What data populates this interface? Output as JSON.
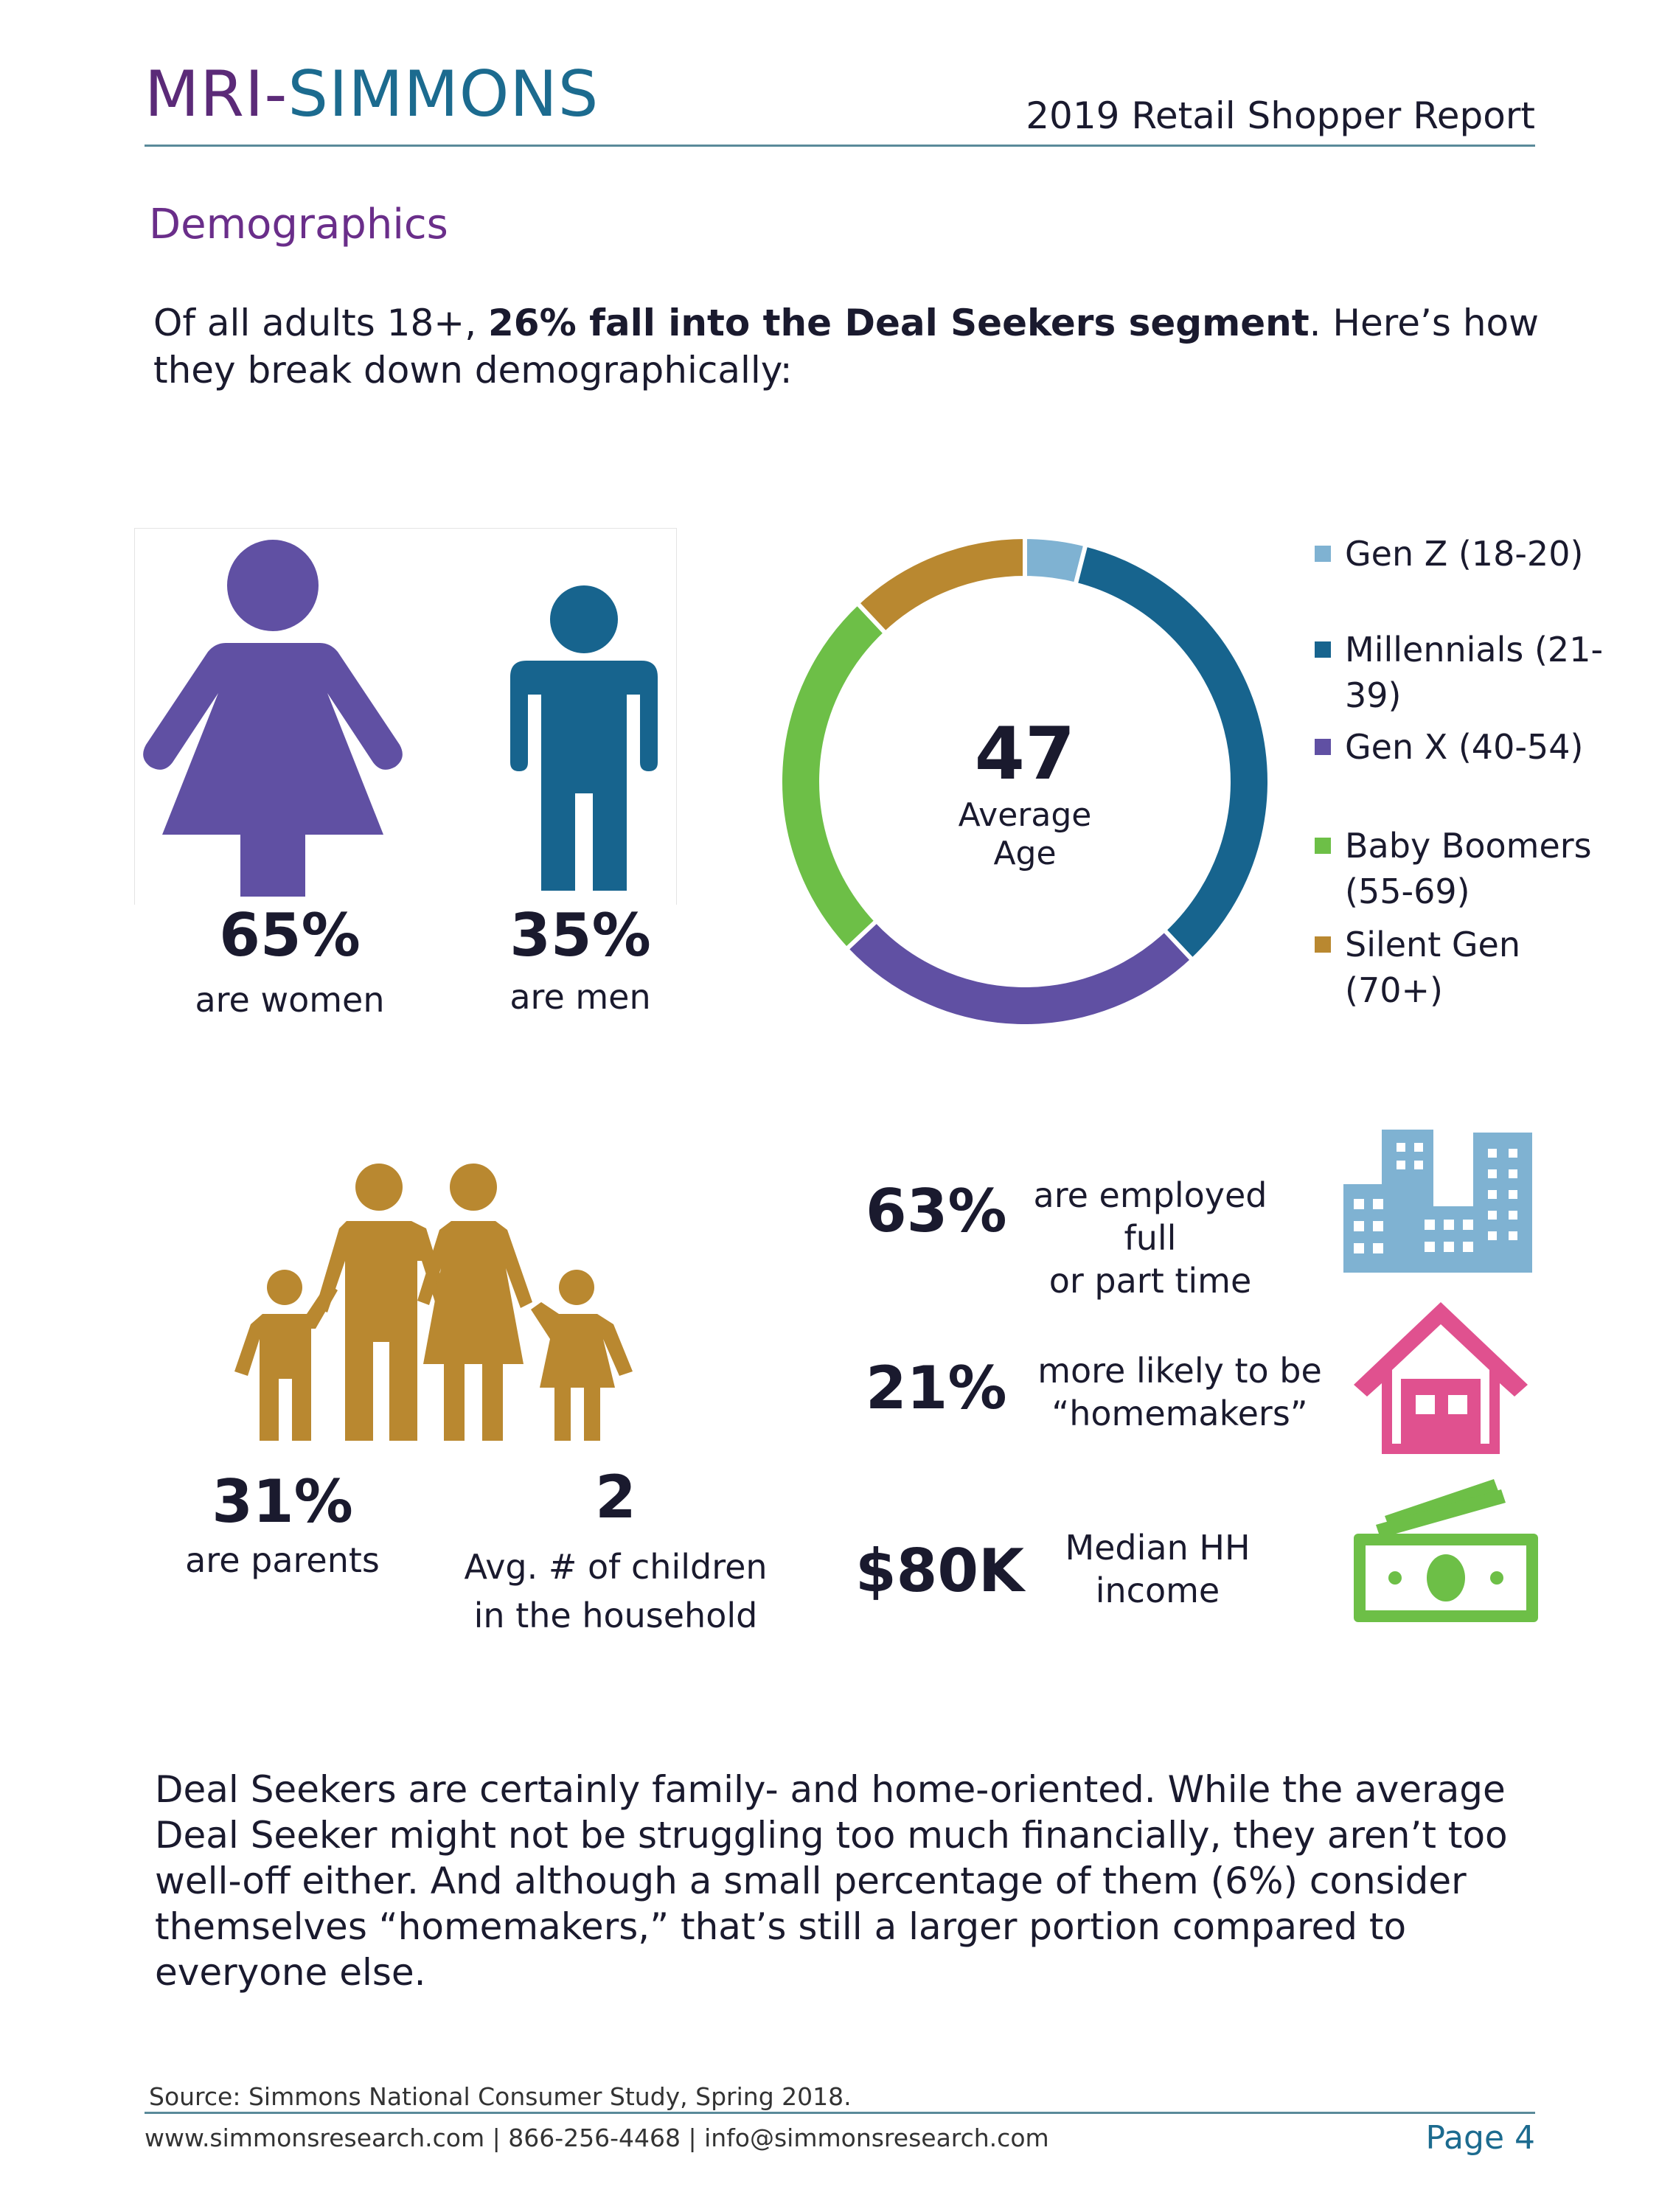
{
  "header": {
    "brand_part1": "MRI-",
    "brand_part2": "SIMMONS",
    "report_title": "2019 Retail Shopper Report"
  },
  "section_title": "Demographics",
  "intro": {
    "part1": "Of all adults 18+, ",
    "bold": "26% fall into the Deal Seekers segment",
    "part2": ". Here’s how they break down demographically:"
  },
  "gender": {
    "women_pct": "65%",
    "women_label": "are women",
    "men_pct": "35%",
    "men_label": "are men"
  },
  "age_chart": {
    "center_value": "47",
    "center_label_line1": "Average",
    "center_label_line2": "Age"
  },
  "chart_data": {
    "type": "pie",
    "donut": true,
    "categories": [
      "Gen Z (18-20)",
      "Millennials (21-39)",
      "Gen X (40-54)",
      "Baby Boomers (55-69)",
      "Silent Gen (70+)"
    ],
    "values": [
      4,
      34,
      25,
      25,
      12
    ],
    "colors": [
      "#7fb2d2",
      "#17648e",
      "#6050a3",
      "#6dbf47",
      "#b98830"
    ],
    "legend_placement": "right",
    "legend_labels": [
      {
        "line1": "Gen Z (18-20)",
        "line2": ""
      },
      {
        "line1": "Millennials (21-",
        "line2": "39)"
      },
      {
        "line1": "Gen X (40-54)",
        "line2": ""
      },
      {
        "line1": "Baby Boomers",
        "line2": "(55-69)"
      },
      {
        "line1": "Silent Gen",
        "line2": "(70+)"
      }
    ]
  },
  "family": {
    "parents_pct": "31%",
    "parents_label": "are parents",
    "children_num": "2",
    "children_label_line1": "Avg. # of children",
    "children_label_line2": "in the household"
  },
  "stats": {
    "employed_pct": "63%",
    "employed_line1": "are employed full",
    "employed_line2": "or part time",
    "homemakers_pct": "21%",
    "homemakers_line1": "more likely to be",
    "homemakers_line2": "“homemakers”",
    "income_value": "$80K",
    "income_line1": "Median HH",
    "income_line2": "income"
  },
  "colors": {
    "purple": "#6050a3",
    "blue": "#17648e",
    "gold": "#b98830",
    "light_blue": "#7fb2d2",
    "pink": "#e0518f",
    "green": "#6dbf47"
  },
  "icons": [
    "woman-icon",
    "man-icon",
    "family-icon",
    "buildings-icon",
    "house-icon",
    "money-icon"
  ],
  "body_paragraph": "Deal Seekers are certainly family- and home-oriented. While the average Deal Seeker might not be struggling too much financially, they aren’t too well-off either. And although a small percentage of them (6%) consider themselves “homemakers,” that’s still a larger portion compared to everyone else.",
  "footer": {
    "source": "Source: Simmons National Consumer Study, Spring 2018.",
    "contact": "www.simmonsresearch.com | 866-256-4468 | info@simmonsresearch.com",
    "page": "Page 4"
  }
}
